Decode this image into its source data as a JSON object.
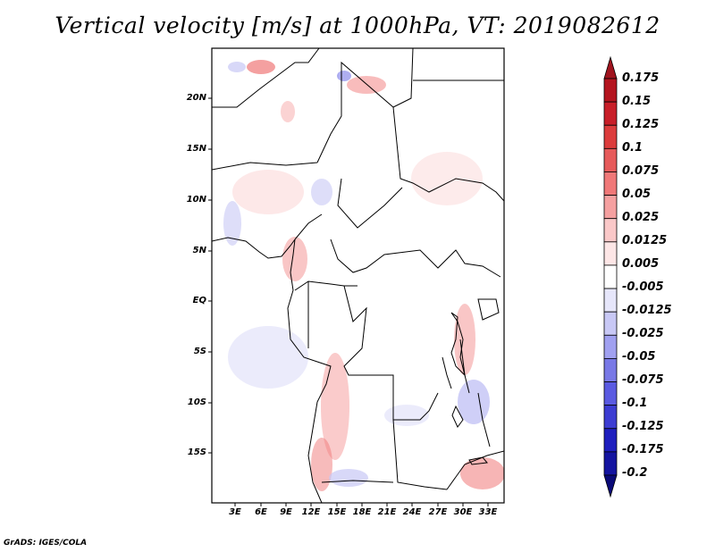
{
  "title": "Vertical velocity [m/s] at 1000hPa, VT: 2019082612",
  "credit": "GrADS: IGES/COLA",
  "lat_labels": [
    "20N",
    "15N",
    "10N",
    "5N",
    "EQ",
    "5S",
    "10S",
    "15S"
  ],
  "lon_labels": [
    "3E",
    "6E",
    "9E",
    "12E",
    "15E",
    "18E",
    "21E",
    "24E",
    "27E",
    "30E",
    "33E"
  ],
  "colorbar": {
    "labels": [
      "0.175",
      "0.15",
      "0.125",
      "0.1",
      "0.075",
      "0.05",
      "0.025",
      "0.0125",
      "0.005",
      "-0.005",
      "-0.0125",
      "-0.025",
      "-0.05",
      "-0.075",
      "-0.1",
      "-0.125",
      "-0.175",
      "-0.2"
    ],
    "colors": [
      "#a0141e",
      "#b4141e",
      "#c81e28",
      "#dc3c3c",
      "#e65a5a",
      "#f07878",
      "#f5a0a0",
      "#fac8c8",
      "#fde6e6",
      "#ffffff",
      "#e6e6fa",
      "#c8c8f5",
      "#a0a0f0",
      "#7878e6",
      "#5a5ae1",
      "#3c3cd2",
      "#1e1ebe",
      "#1414a0",
      "#0a0a78"
    ]
  }
}
